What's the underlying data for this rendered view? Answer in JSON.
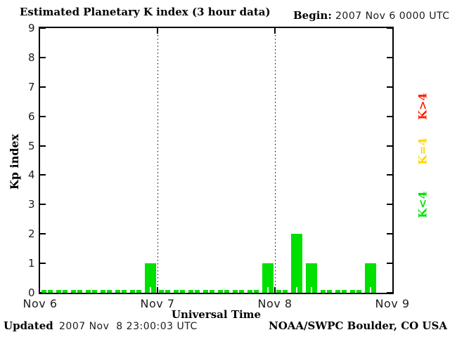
{
  "title": "Estimated Planetary K index (3 hour data)",
  "begin": {
    "label": "Begin:",
    "value": "2007 Nov 6 0000 UTC"
  },
  "footer": {
    "updated_label": "Updated",
    "updated_value": "2007 Nov  8 23:00:03 UTC",
    "source": "NOAA/SWPC Boulder, CO USA"
  },
  "chart_data": {
    "type": "bar",
    "title": "Estimated Planetary K index (3 hour data)",
    "xlabel": "Universal Time",
    "ylabel": "Kp index",
    "ylim": [
      0,
      9
    ],
    "y_ticks": [
      0,
      1,
      2,
      3,
      4,
      5,
      6,
      7,
      8,
      9
    ],
    "x_ticks": [
      "Nov 6",
      "Nov 7",
      "Nov 8",
      "Nov 9"
    ],
    "hours_per_bar": 3,
    "bars_per_day": 8,
    "bar_color": "#00e000",
    "grid": "none",
    "day_boundary_style": "dotted-vertical-line",
    "series": [
      {
        "day": "Nov 6",
        "values": [
          0,
          0,
          0,
          0,
          0,
          0,
          0,
          1
        ]
      },
      {
        "day": "Nov 7",
        "values": [
          0,
          0,
          0,
          0,
          0,
          0,
          0,
          1
        ]
      },
      {
        "day": "Nov 8",
        "values": [
          0,
          2,
          1,
          0,
          0,
          0,
          1,
          null
        ]
      }
    ],
    "legend_position": "right",
    "legend": [
      {
        "label": "K>4",
        "color": "#ff2000"
      },
      {
        "label": "K=4",
        "color": "#ffd700"
      },
      {
        "label": "K<4",
        "color": "#00e000"
      }
    ]
  }
}
